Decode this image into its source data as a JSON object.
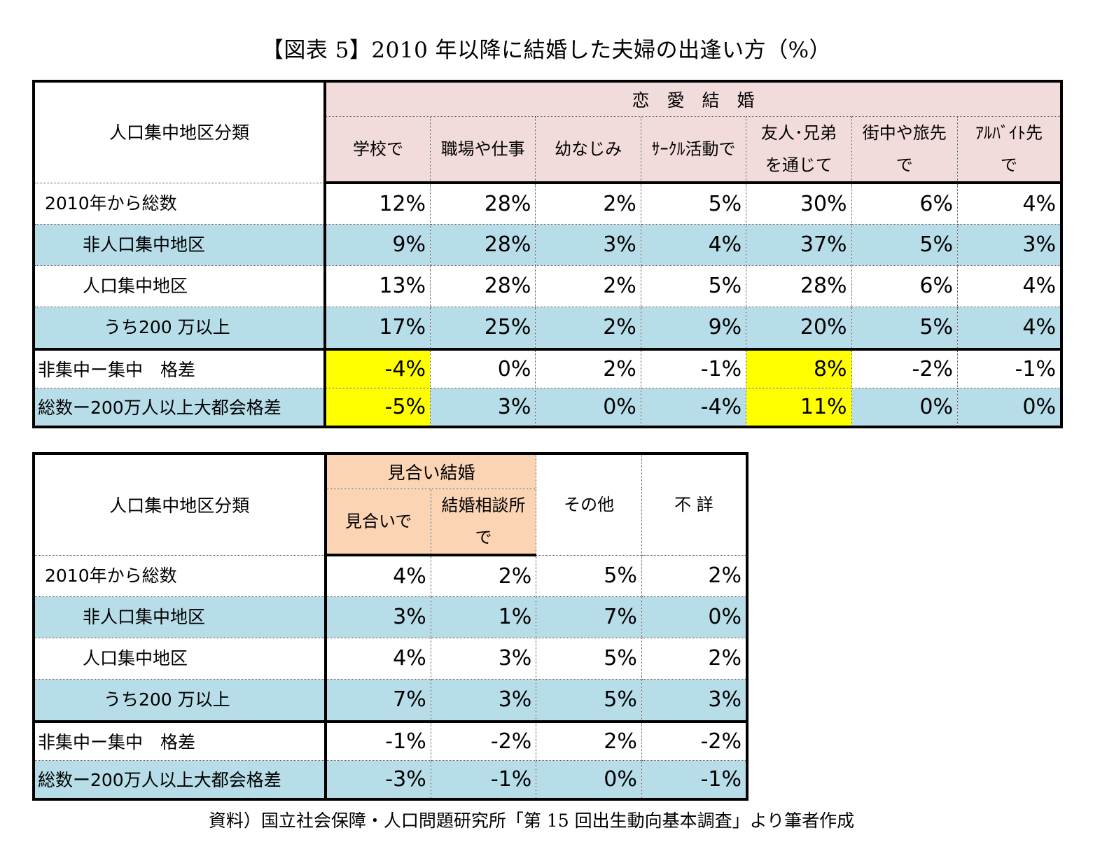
{
  "title": "【図表 5】2010 年以降に結婚した夫婦の出逢い方（%）",
  "source": "資料）国立社会保障・人口問題研究所「第 15 回出生動向基本調査」より筆者作成",
  "table1": {
    "row_header": "人口集中地区分類",
    "group": "恋　愛　結　婚",
    "columns": [
      {
        "line1": "学校で",
        "line2": ""
      },
      {
        "line1": "職場や仕事",
        "line2": ""
      },
      {
        "line1": "幼なじみ",
        "line2": ""
      },
      {
        "line1": "ｻｰｸﾙ活動で",
        "line2": ""
      },
      {
        "line1": "友人･兄弟",
        "line2": "を通じて"
      },
      {
        "line1": "街中や旅先",
        "line2": "で"
      },
      {
        "line1": "ｱﾙﾊﾞｲﾄ先",
        "line2": "で"
      }
    ],
    "rows": [
      {
        "label": "2010年から総数",
        "values": [
          "12%",
          "28%",
          "2%",
          "5%",
          "30%",
          "6%",
          "4%"
        ]
      },
      {
        "label": "非人口集中地区",
        "values": [
          "9%",
          "28%",
          "3%",
          "4%",
          "37%",
          "5%",
          "3%"
        ]
      },
      {
        "label": "人口集中地区",
        "values": [
          "13%",
          "28%",
          "2%",
          "5%",
          "28%",
          "6%",
          "4%"
        ]
      },
      {
        "label": "うち200 万以上",
        "values": [
          "17%",
          "25%",
          "2%",
          "9%",
          "20%",
          "5%",
          "4%"
        ]
      },
      {
        "label": "非集中ー集中　格差",
        "values": [
          "-4%",
          "0%",
          "2%",
          "-1%",
          "8%",
          "-2%",
          "-1%"
        ]
      },
      {
        "label": "総数ー200万人以上大都会格差",
        "values": [
          "-5%",
          "3%",
          "0%",
          "-4%",
          "11%",
          "0%",
          "0%"
        ]
      }
    ]
  },
  "table2": {
    "row_header": "人口集中地区分類",
    "group": "見合い結婚",
    "columns": [
      {
        "line1": "見合いで",
        "line2": ""
      },
      {
        "line1": "結婚相談所",
        "line2": "で"
      },
      {
        "line1": "その他",
        "line2": ""
      },
      {
        "line1": "不 詳",
        "line2": ""
      }
    ],
    "rows": [
      {
        "label": "2010年から総数",
        "values": [
          "4%",
          "2%",
          "5%",
          "2%"
        ]
      },
      {
        "label": "非人口集中地区",
        "values": [
          "3%",
          "1%",
          "7%",
          "0%"
        ]
      },
      {
        "label": "人口集中地区",
        "values": [
          "4%",
          "3%",
          "5%",
          "2%"
        ]
      },
      {
        "label": "うち200 万以上",
        "values": [
          "7%",
          "3%",
          "5%",
          "3%"
        ]
      },
      {
        "label": "非集中ー集中　格差",
        "values": [
          "-1%",
          "-2%",
          "2%",
          "-2%"
        ]
      },
      {
        "label": "総数ー200万人以上大都会格差",
        "values": [
          "-3%",
          "-1%",
          "0%",
          "-1%"
        ]
      }
    ]
  },
  "colors": {
    "love_header": "#f2dcdb",
    "arranged_header": "#fbd4b4",
    "band_row": "#b7dde8",
    "highlight": "#ffff00"
  },
  "chart_data": [
    {
      "type": "table",
      "title": "【図表 5】2010 年以降に結婚した夫婦の出逢い方（%）",
      "group": "恋　愛　結　婚",
      "categories": [
        "学校で",
        "職場や仕事",
        "幼なじみ",
        "ｻｰｸﾙ活動で",
        "友人･兄弟を通じて",
        "街中や旅先で",
        "ｱﾙﾊﾞｲﾄ先で"
      ],
      "series": [
        {
          "name": "2010年から総数",
          "values": [
            12,
            28,
            2,
            5,
            30,
            6,
            4
          ]
        },
        {
          "name": "非人口集中地区",
          "values": [
            9,
            28,
            3,
            4,
            37,
            5,
            3
          ]
        },
        {
          "name": "人口集中地区",
          "values": [
            13,
            28,
            2,
            5,
            28,
            6,
            4
          ]
        },
        {
          "name": "うち200 万以上",
          "values": [
            17,
            25,
            2,
            9,
            20,
            5,
            4
          ]
        },
        {
          "name": "非集中ー集中　格差",
          "values": [
            -4,
            0,
            2,
            -1,
            8,
            -2,
            -1
          ]
        },
        {
          "name": "総数ー200万人以上大都会格差",
          "values": [
            -5,
            3,
            0,
            -4,
            11,
            0,
            0
          ]
        }
      ],
      "highlighted_cells": [
        [
          4,
          0
        ],
        [
          4,
          4
        ],
        [
          5,
          0
        ],
        [
          5,
          4
        ]
      ]
    },
    {
      "type": "table",
      "group": "見合い結婚",
      "categories": [
        "見合いで",
        "結婚相談所で",
        "その他",
        "不 詳"
      ],
      "series": [
        {
          "name": "2010年から総数",
          "values": [
            4,
            2,
            5,
            2
          ]
        },
        {
          "name": "非人口集中地区",
          "values": [
            3,
            1,
            7,
            0
          ]
        },
        {
          "name": "人口集中地区",
          "values": [
            4,
            3,
            5,
            2
          ]
        },
        {
          "name": "うち200 万以上",
          "values": [
            7,
            3,
            5,
            3
          ]
        },
        {
          "name": "非集中ー集中　格差",
          "values": [
            -1,
            -2,
            2,
            -2
          ]
        },
        {
          "name": "総数ー200万人以上大都会格差",
          "values": [
            -3,
            -1,
            0,
            -1
          ]
        }
      ]
    }
  ]
}
